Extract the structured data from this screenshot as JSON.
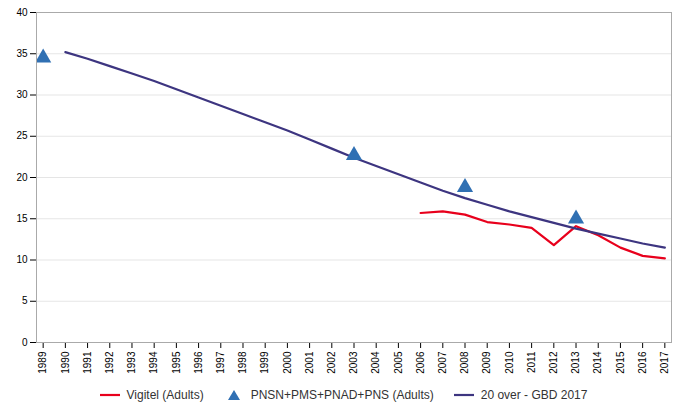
{
  "chart_data": {
    "type": "line",
    "series": [
      {
        "name": "Vigitel (Adults)",
        "type": "line",
        "color": "#e8001c",
        "x": [
          2006,
          2007,
          2008,
          2009,
          2010,
          2011,
          2012,
          2013,
          2014,
          2015,
          2016,
          2017
        ],
        "values": [
          15.7,
          15.9,
          15.5,
          14.6,
          14.3,
          13.9,
          11.8,
          14.1,
          13.0,
          11.5,
          10.5,
          10.2
        ]
      },
      {
        "name": "PNSN+PMS+PNAD+PNS (Adults)",
        "type": "scatter",
        "marker": "triangle",
        "color": "#3070b3",
        "x": [
          1989,
          2003,
          2008,
          2013
        ],
        "values": [
          34.5,
          22.7,
          18.8,
          15.0
        ]
      },
      {
        "name": "20 over - GBD 2017",
        "type": "line",
        "color": "#3d3580",
        "x": [
          1990,
          1991,
          1992,
          1993,
          1994,
          1995,
          1996,
          1997,
          1998,
          1999,
          2000,
          2001,
          2002,
          2003,
          2004,
          2005,
          2006,
          2007,
          2008,
          2009,
          2010,
          2011,
          2012,
          2013,
          2014,
          2015,
          2016,
          2017
        ],
        "values": [
          35.2,
          34.4,
          33.5,
          32.6,
          31.7,
          30.7,
          29.7,
          28.7,
          27.7,
          26.7,
          25.7,
          24.6,
          23.5,
          22.4,
          21.4,
          20.4,
          19.4,
          18.4,
          17.5,
          16.7,
          15.9,
          15.2,
          14.5,
          13.8,
          13.2,
          12.6,
          12.0,
          11.5
        ]
      }
    ],
    "xlim": [
      1988.7,
      2017.3
    ],
    "xticks": [
      1989,
      1990,
      1991,
      1992,
      1993,
      1994,
      1995,
      1996,
      1997,
      1998,
      1999,
      2000,
      2001,
      2002,
      2003,
      2004,
      2005,
      2006,
      2007,
      2008,
      2009,
      2010,
      2011,
      2012,
      2013,
      2014,
      2015,
      2016,
      2017
    ],
    "ylim": [
      0,
      40
    ],
    "yticks": [
      0,
      5,
      10,
      15,
      20,
      25,
      30,
      35,
      40
    ],
    "grid": "y",
    "legend": "bottom"
  }
}
